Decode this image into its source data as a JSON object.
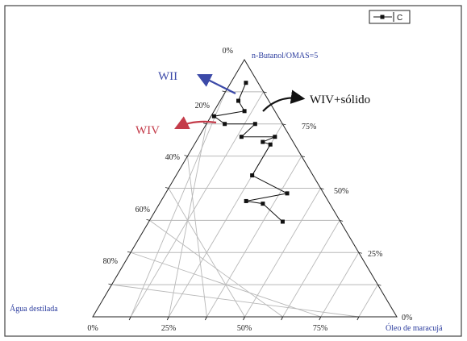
{
  "chart_data": {
    "type": "scatter",
    "chart_kind": "ternary",
    "legend": {
      "series_label": "C",
      "placement": "top-right"
    },
    "vertex_labels": {
      "top": "n-Butanol/OMAS=5",
      "left": "Água destilada",
      "right": "Óleo de maracujá"
    },
    "tick_labels": {
      "bottom": [
        "0%",
        "25%",
        "50%",
        "75%"
      ],
      "left": [
        "0%",
        "20%",
        "40%",
        "60%",
        "80%"
      ],
      "right": [
        "0%",
        "25%",
        "50%",
        "75%"
      ]
    },
    "series": [
      {
        "name": "C",
        "points": [
          {
            "surfactant": 0.91,
            "oil": 0.05,
            "water": 0.04
          },
          {
            "surfactant": 0.84,
            "oil": 0.06,
            "water": 0.1
          },
          {
            "surfactant": 0.8,
            "oil": 0.1,
            "water": 0.1
          },
          {
            "surfactant": 0.78,
            "oil": 0.01,
            "water": 0.21
          },
          {
            "surfactant": 0.75,
            "oil": 0.06,
            "water": 0.19
          },
          {
            "surfactant": 0.75,
            "oil": 0.16,
            "water": 0.09
          },
          {
            "surfactant": 0.7,
            "oil": 0.14,
            "water": 0.16
          },
          {
            "surfactant": 0.7,
            "oil": 0.25,
            "water": 0.05
          },
          {
            "surfactant": 0.68,
            "oil": 0.22,
            "water": 0.1
          },
          {
            "surfactant": 0.67,
            "oil": 0.25,
            "water": 0.08
          },
          {
            "surfactant": 0.55,
            "oil": 0.25,
            "water": 0.2
          },
          {
            "surfactant": 0.48,
            "oil": 0.4,
            "water": 0.12
          },
          {
            "surfactant": 0.45,
            "oil": 0.28,
            "water": 0.27
          },
          {
            "surfactant": 0.44,
            "oil": 0.34,
            "water": 0.22
          },
          {
            "surfactant": 0.37,
            "oil": 0.44,
            "water": 0.19
          }
        ]
      }
    ],
    "annotations": [
      {
        "text": "WII",
        "color": "#3c4aa8"
      },
      {
        "text": "WIV+sólido",
        "color": "#111111"
      },
      {
        "text": "WIV",
        "color": "#c43c4a"
      }
    ],
    "grid": true
  }
}
